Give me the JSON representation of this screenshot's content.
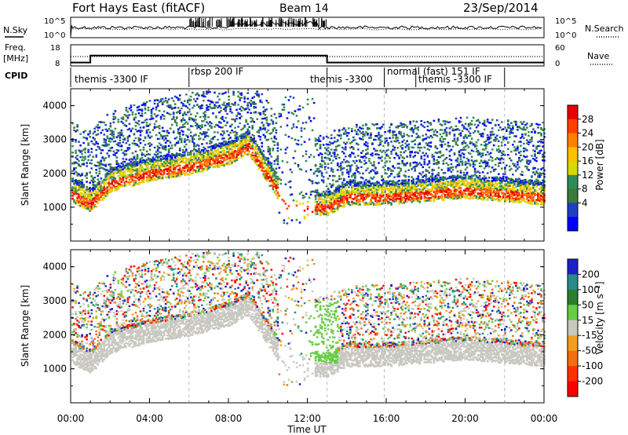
{
  "header": {
    "station": "Fort Hays East (fitACF)",
    "beam": "Beam 14",
    "date": "23/Sep/2014"
  },
  "top_panels": {
    "nsky_label": "N.Sky",
    "nsearch_label": "N.Search",
    "freq_label": "Freq.",
    "freq_unit": "[MHz]",
    "nave_label": "Nave",
    "cpid_label": "CPID",
    "noise_ticks_left": [
      "10^5",
      "10^0"
    ],
    "noise_ticks_right": [
      "10^5",
      "10^0"
    ],
    "freq_ticks": [
      "18",
      "8"
    ],
    "nave_ticks": [
      "60",
      "0"
    ]
  },
  "cpid_segments": [
    {
      "label": "themis -3300 IF",
      "start": 0.0,
      "end": 6.0
    },
    {
      "label": "rbsp 200 IF",
      "start": 6.0,
      "end": 13.0
    },
    {
      "label": "themis -3300",
      "start": 13.0,
      "end": 15.9
    },
    {
      "label": "normal (fast) 151 IF",
      "start": 15.9,
      "end": 22.0
    },
    {
      "label": "themis -3300 IF",
      "start": 17.5,
      "end": 22.0
    }
  ],
  "axes": {
    "xlabel": "Time UT",
    "xticks": [
      "00:00",
      "04:00",
      "08:00",
      "12:00",
      "16:00",
      "20:00",
      "00:00"
    ],
    "ylabel_power": "Slant Range [km]",
    "ylabel_velocity": "Slant Range [km]",
    "yticks": [
      "4000",
      "3000",
      "2000",
      "1000"
    ]
  },
  "colorbars": {
    "power": {
      "label": "Power [dB]",
      "ticks": [
        "28",
        "24",
        "20",
        "16",
        "12",
        "8",
        "4"
      ],
      "colors": [
        "#e60000",
        "#ff4000",
        "#ff8000",
        "#ffc000",
        "#d8d800",
        "#2e8b57",
        "#3a7a3a",
        "#2040c0",
        "#0000ff"
      ]
    },
    "velocity": {
      "label": "Velocity [m s⁻¹]",
      "ticks": [
        "200",
        "100",
        "50",
        "15",
        "-15",
        "-50",
        "-100",
        "-200"
      ],
      "colors": [
        "#1c20c8",
        "#2b8a8a",
        "#2e7d2e",
        "#66cc44",
        "#c8c8c0",
        "#f0a020",
        "#f07010",
        "#ff3000",
        "#ff0000"
      ]
    }
  },
  "chart_data": {
    "type": "heatmap",
    "title": "Fort Hays East (fitACF) Beam 14",
    "x_range_hours": [
      0,
      24
    ],
    "y_range_km": [
      0,
      4500
    ],
    "frequency_mhz": [
      {
        "t": 0.0,
        "f": 10
      },
      {
        "t": 1.0,
        "f": 10
      },
      {
        "t": 1.0,
        "f": 14
      },
      {
        "t": 13.0,
        "f": 14
      },
      {
        "t": 13.0,
        "f": 10
      },
      {
        "t": 24.0,
        "f": 10
      }
    ],
    "nave": 10,
    "backscatter_band_range_km": [
      {
        "t": 0.0,
        "range": 1400
      },
      {
        "t": 1.0,
        "range": 1100
      },
      {
        "t": 2.0,
        "range": 1700
      },
      {
        "t": 4.0,
        "range": 2000
      },
      {
        "t": 6.0,
        "range": 2200
      },
      {
        "t": 8.0,
        "range": 2500
      },
      {
        "t": 9.0,
        "range": 2800
      },
      {
        "t": 11.0,
        "range": 1000
      },
      {
        "t": 13.0,
        "range": 1000
      },
      {
        "t": 14.0,
        "range": 1300
      },
      {
        "t": 16.0,
        "range": 1300
      },
      {
        "t": 20.0,
        "range": 1500
      },
      {
        "t": 22.0,
        "range": 1400
      },
      {
        "t": 24.0,
        "range": 1300
      }
    ]
  }
}
